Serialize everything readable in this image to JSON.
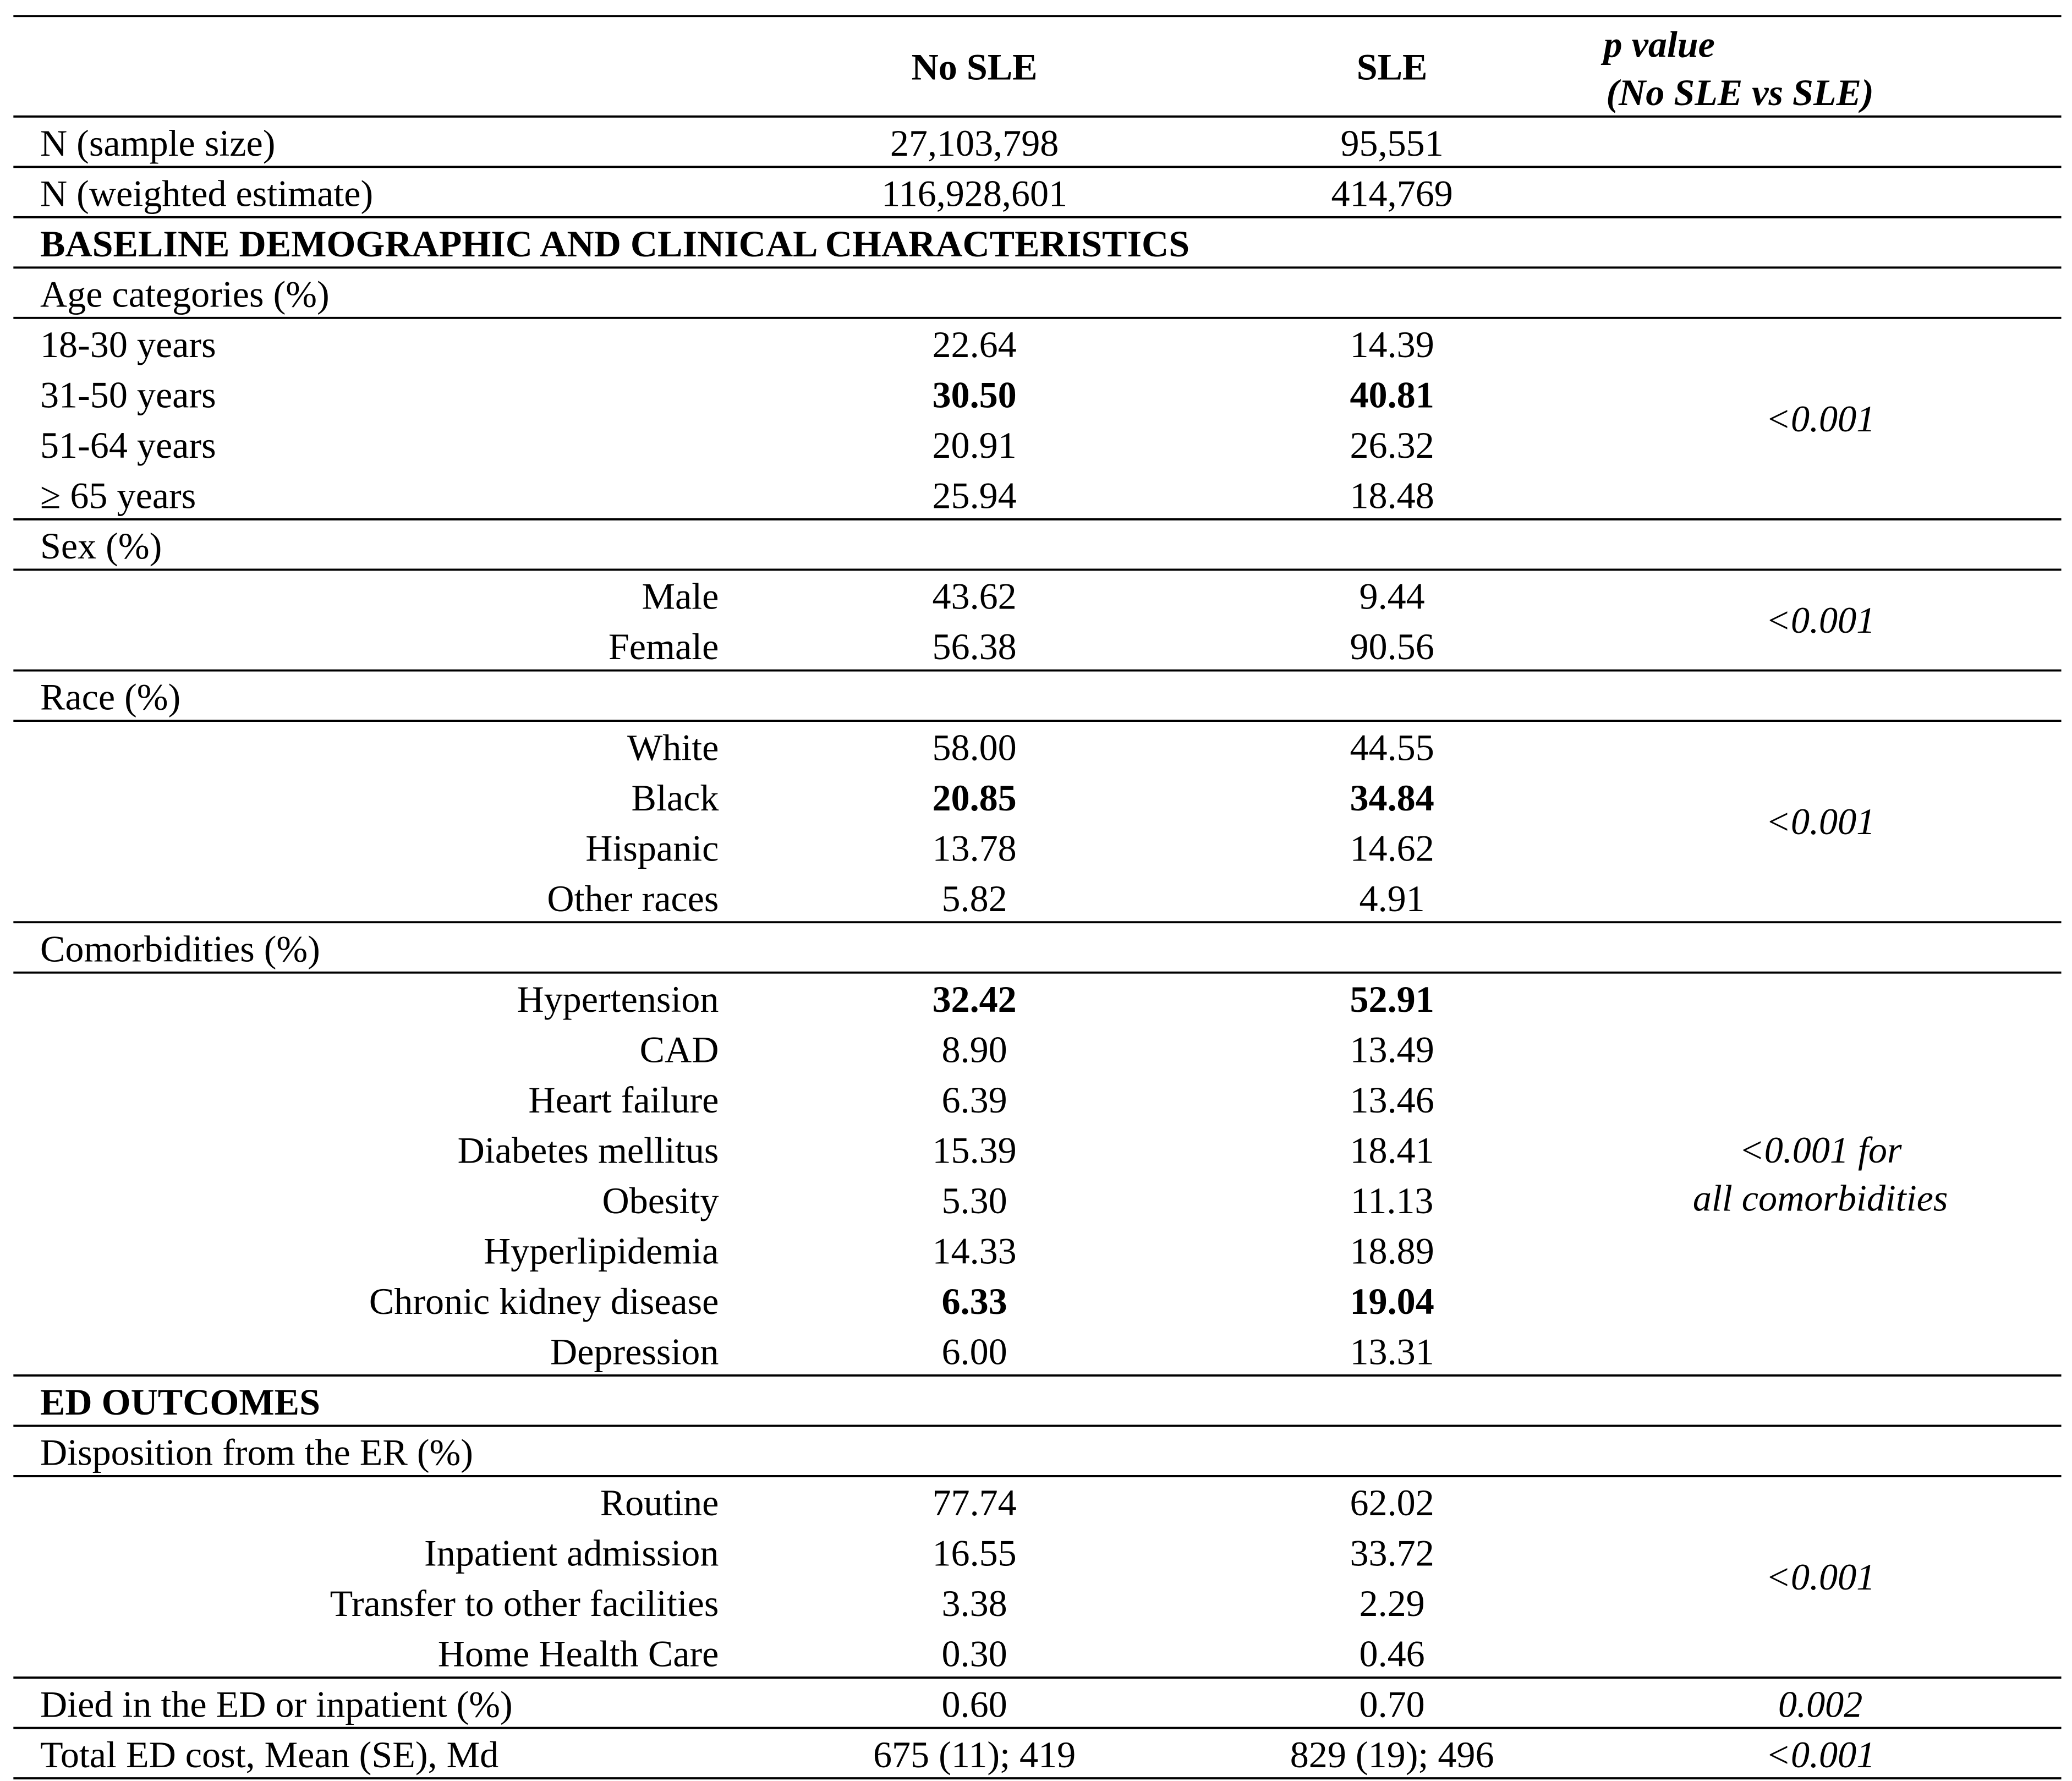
{
  "header": {
    "col1": "No SLE",
    "col2": "SLE",
    "col3": "p value",
    "col3_sub": "(No SLE vs SLE)"
  },
  "rows": [
    {
      "label": "N (sample size)",
      "no_sle": "27,103,798",
      "sle": "95,551"
    },
    {
      "label": "N (weighted estimate)",
      "no_sle": "116,928,601",
      "sle": "414,769"
    },
    {
      "section": "BASELINE DEMOGRAPHIC AND CLINICAL CHARACTERISTICS"
    },
    {
      "group": "Age categories (%)",
      "align": "left",
      "p_value": "<0.001",
      "items": [
        {
          "label": "18-30 years",
          "no_sle": "22.64",
          "sle": "14.39"
        },
        {
          "label": "31-50 years",
          "no_sle": "30.50",
          "sle": "40.81",
          "bold": true
        },
        {
          "label": "51-64 years",
          "no_sle": "20.91",
          "sle": "26.32"
        },
        {
          "label": "≥ 65 years",
          "no_sle": "25.94",
          "sle": "18.48"
        }
      ]
    },
    {
      "group": "Sex (%)",
      "align": "right",
      "p_value": "<0.001",
      "items": [
        {
          "label": "Male",
          "no_sle": "43.62",
          "sle": "9.44"
        },
        {
          "label": "Female",
          "no_sle": "56.38",
          "sle": "90.56"
        }
      ]
    },
    {
      "group": "Race (%)",
      "align": "right",
      "p_value": "<0.001",
      "items": [
        {
          "label": "White",
          "no_sle": "58.00",
          "sle": "44.55"
        },
        {
          "label": "Black",
          "no_sle": "20.85",
          "sle": "34.84",
          "bold": true
        },
        {
          "label": "Hispanic",
          "no_sle": "13.78",
          "sle": "14.62"
        },
        {
          "label": "Other races",
          "no_sle": "5.82",
          "sle": "4.91"
        }
      ]
    },
    {
      "group": "Comorbidities (%)",
      "align": "right",
      "p_value": [
        "<0.001 for",
        "all comorbidities"
      ],
      "items": [
        {
          "label": "Hypertension",
          "no_sle": "32.42",
          "sle": "52.91",
          "bold": true
        },
        {
          "label": "CAD",
          "no_sle": "8.90",
          "sle": "13.49"
        },
        {
          "label": "Heart failure",
          "no_sle": "6.39",
          "sle": "13.46"
        },
        {
          "label": "Diabetes mellitus",
          "no_sle": "15.39",
          "sle": "18.41"
        },
        {
          "label": "Obesity",
          "no_sle": "5.30",
          "sle": "11.13"
        },
        {
          "label": "Hyperlipidemia",
          "no_sle": "14.33",
          "sle": "18.89"
        },
        {
          "label": "Chronic kidney disease",
          "no_sle": "6.33",
          "sle": "19.04",
          "bold": true
        },
        {
          "label": "Depression",
          "no_sle": "6.00",
          "sle": "13.31"
        }
      ]
    },
    {
      "section": "ED OUTCOMES"
    },
    {
      "group": "Disposition from the ER (%)",
      "align": "right",
      "p_value": "<0.001",
      "items": [
        {
          "label": "Routine",
          "no_sle": "77.74",
          "sle": "62.02"
        },
        {
          "label": "Inpatient admission",
          "no_sle": "16.55",
          "sle": "33.72"
        },
        {
          "label": "Transfer to other facilities",
          "no_sle": "3.38",
          "sle": "2.29"
        },
        {
          "label": "Home Health Care",
          "no_sle": "0.30",
          "sle": "0.46"
        }
      ]
    },
    {
      "label": "Died in the ED or inpatient (%)",
      "no_sle": "0.60",
      "sle": "0.70",
      "p_value": "0.002"
    },
    {
      "label": "Total ED cost, Mean (SE), Md",
      "no_sle": "675 (11); 419",
      "sle": "829 (19); 496",
      "p_value": "<0.001"
    }
  ]
}
